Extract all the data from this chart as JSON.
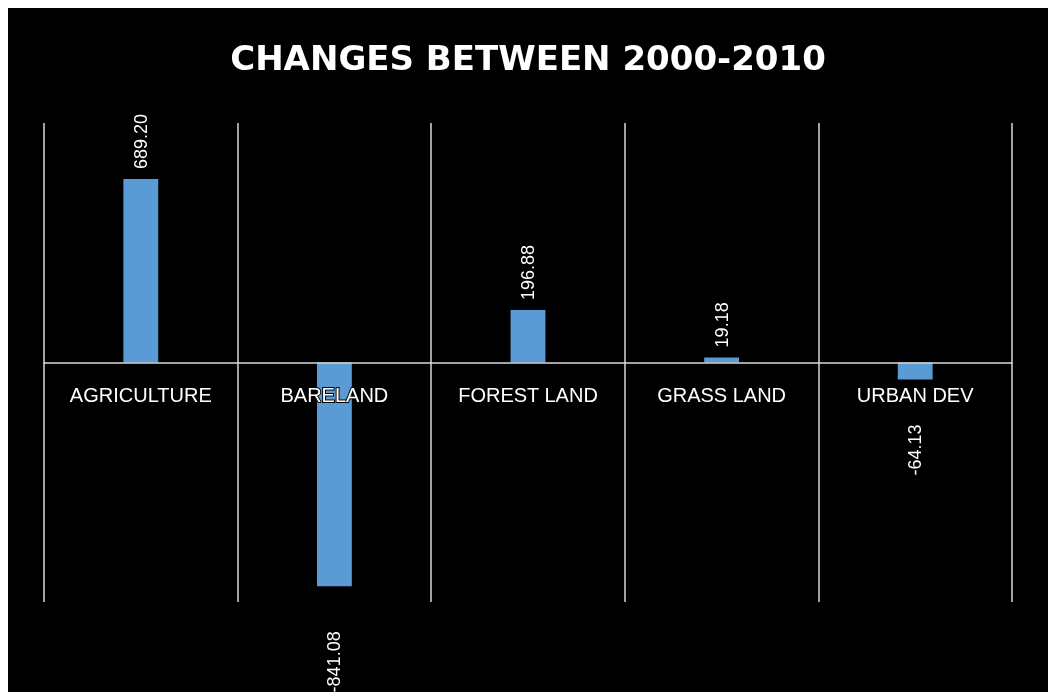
{
  "chart_data": {
    "type": "bar",
    "title": "CHANGES BETWEEN 2000-2010",
    "categories": [
      "AGRICULTURE",
      "BARELAND",
      "FOREST LAND",
      "GRASS LAND",
      "URBAN DEV"
    ],
    "values": [
      689.2,
      -841.08,
      196.88,
      19.18,
      -64.13
    ],
    "value_labels": [
      "689.20",
      "-841.08",
      "196.88",
      "19.18",
      "-64.13"
    ],
    "color": "#5b9bd5",
    "grid": "x"
  }
}
